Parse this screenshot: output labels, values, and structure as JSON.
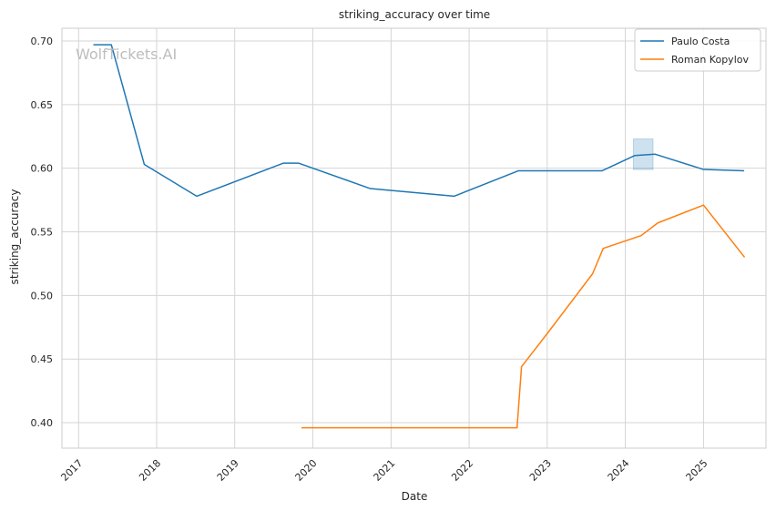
{
  "chart_data": {
    "type": "line",
    "title": "striking_accuracy over time",
    "xlabel": "Date",
    "ylabel": "striking_accuracy",
    "watermark": "WolfTickets.AI",
    "xlim": [
      "2016-10-15",
      "2025-10-20"
    ],
    "ylim": [
      0.38,
      0.71
    ],
    "x_ticks": [
      "2017",
      "2018",
      "2019",
      "2020",
      "2021",
      "2022",
      "2023",
      "2024",
      "2025"
    ],
    "y_ticks": [
      "0.40",
      "0.45",
      "0.50",
      "0.55",
      "0.60",
      "0.65",
      "0.70"
    ],
    "grid": true,
    "legend_position": "top-right",
    "series": [
      {
        "name": "Paulo Costa",
        "color": "#1f77b4",
        "points": [
          [
            "2017-03-11",
            0.697
          ],
          [
            "2017-06-03",
            0.697
          ],
          [
            "2017-11-04",
            0.603
          ],
          [
            "2018-07-07",
            0.578
          ],
          [
            "2019-08-17",
            0.604
          ],
          [
            "2019-10-26",
            0.604
          ],
          [
            "2020-09-26",
            0.584
          ],
          [
            "2021-10-23",
            0.578
          ],
          [
            "2022-08-20",
            0.598
          ],
          [
            "2023-09-15",
            0.598
          ],
          [
            "2024-02-15",
            0.61
          ],
          [
            "2024-05-20",
            0.611
          ],
          [
            "2025-01-01",
            0.599
          ],
          [
            "2025-07-10",
            0.598
          ]
        ],
        "band": {
          "x_start": "2024-02-08",
          "x_end": "2024-05-10",
          "y_low": 0.599,
          "y_high": 0.623
        }
      },
      {
        "name": "Roman Kopylov",
        "color": "#ff7f0e",
        "points": [
          [
            "2019-11-09",
            0.396
          ],
          [
            "2022-08-13",
            0.396
          ],
          [
            "2022-09-03",
            0.444
          ],
          [
            "2023-01-01",
            0.47
          ],
          [
            "2023-08-01",
            0.517
          ],
          [
            "2023-09-20",
            0.537
          ],
          [
            "2024-03-15",
            0.547
          ],
          [
            "2024-06-01",
            0.557
          ],
          [
            "2025-01-01",
            0.571
          ],
          [
            "2025-07-12",
            0.53
          ]
        ]
      }
    ]
  }
}
